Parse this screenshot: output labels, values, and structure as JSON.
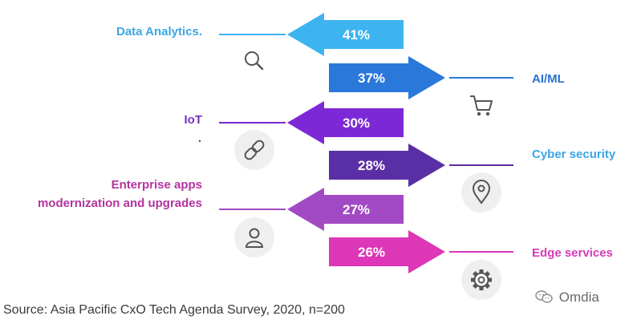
{
  "chart_data": {
    "type": "bar",
    "title": "",
    "categories": [
      "Data Analytics.",
      "AI/ML",
      "IoT",
      "Cyber security",
      "Enterprise apps modernization and upgrades",
      "Edge services"
    ],
    "label_lines": [
      [
        "Data Analytics."
      ],
      [
        "AI/ML"
      ],
      [
        "IoT"
      ],
      [
        "Cyber security"
      ],
      [
        "Enterprise apps",
        "modernization and upgrades"
      ],
      [
        "Edge services"
      ]
    ],
    "values": [
      41,
      37,
      30,
      28,
      27,
      26
    ],
    "display_values": [
      "41%",
      "37%",
      "30%",
      "28%",
      "27%",
      "26%"
    ],
    "directions": [
      "left",
      "right",
      "left",
      "right",
      "left",
      "right"
    ],
    "icons": [
      "search-icon",
      "cart-icon",
      "link-icon",
      "location-pin-icon",
      "user-icon",
      "gear-icon"
    ],
    "extra_mark": ".",
    "unit": "%",
    "xlabel": "",
    "ylabel": ""
  },
  "colors": {
    "arrows": [
      "#3db4f0",
      "#2b78db",
      "#7c28d6",
      "#5a2fa5",
      "#a24ac4",
      "#dd36b6"
    ],
    "labels": [
      "#3aa6e3",
      "#2b6fcf",
      "#7a2fcb",
      "#3aa6e3",
      "#b2349f",
      "#d63bb8"
    ]
  },
  "footer": {
    "source": "Source: Asia Pacific CxO Tech Agenda Survey, 2020, n=200",
    "brand": "Omdia",
    "brand_icon": "wechat-icon"
  }
}
